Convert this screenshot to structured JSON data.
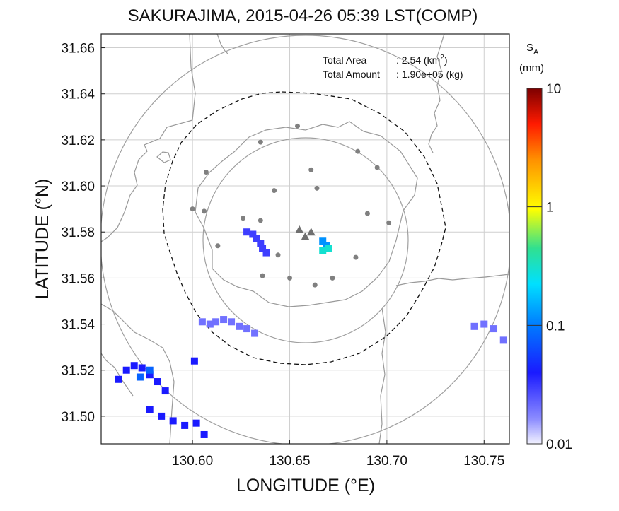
{
  "chart_data": {
    "type": "heatmap",
    "title": "SAKURAJIMA, 2015-04-26 05:39 LST(COMP)",
    "xlabel": "LONGITUDE (°E)",
    "ylabel": "LATITUDE (°N)",
    "xlim": [
      130.553,
      130.763
    ],
    "ylim": [
      31.488,
      31.666
    ],
    "x_ticks": [
      "130.60",
      "130.65",
      "130.70",
      "130.75"
    ],
    "x_tick_values": [
      130.6,
      130.65,
      130.7,
      130.75
    ],
    "y_ticks": [
      "31.50",
      "31.52",
      "31.54",
      "31.56",
      "31.58",
      "31.60",
      "31.62",
      "31.64",
      "31.66"
    ],
    "y_tick_values": [
      31.5,
      31.52,
      31.54,
      31.56,
      31.58,
      31.6,
      31.62,
      31.64,
      31.66
    ],
    "grid": true,
    "annotation": {
      "area_label": "Total Area",
      "area_value": ": 2.54 (km",
      "area_unit_close": ")",
      "area_sup": "2",
      "amount_label": "Total Amount",
      "amount_value": ": 1.90e+05 (kg)"
    },
    "colorbar": {
      "title": "S",
      "title_sub": "A",
      "unit": "(mm)",
      "scale": "log",
      "range": [
        0.01,
        10
      ],
      "ticks": [
        "10",
        "1",
        "0.1",
        "0.01"
      ],
      "tick_values": [
        10,
        1,
        0.1,
        0.01
      ],
      "colors": [
        "#f2f2ff",
        "#1a1aff",
        "#00e8ff",
        "#ffff00",
        "#ff8000",
        "#ff0000",
        "#800000"
      ]
    },
    "centre": {
      "lon": 130.657,
      "lat": 31.578
    },
    "range_rings_km": [
      10,
      15
    ],
    "stations": [
      [
        130.654,
        31.626
      ],
      [
        130.635,
        31.619
      ],
      [
        130.685,
        31.615
      ],
      [
        130.607,
        31.606
      ],
      [
        130.661,
        31.607
      ],
      [
        130.695,
        31.608
      ],
      [
        130.642,
        31.598
      ],
      [
        130.664,
        31.599
      ],
      [
        130.6,
        31.59
      ],
      [
        130.606,
        31.589
      ],
      [
        130.69,
        31.588
      ],
      [
        130.626,
        31.586
      ],
      [
        130.635,
        31.585
      ],
      [
        130.701,
        31.584
      ],
      [
        130.613,
        31.574
      ],
      [
        130.644,
        31.57
      ],
      [
        130.684,
        31.569
      ],
      [
        130.636,
        31.561
      ],
      [
        130.65,
        31.56
      ],
      [
        130.672,
        31.56
      ],
      [
        130.663,
        31.557
      ]
    ],
    "craters": [
      [
        130.655,
        31.581
      ],
      [
        130.658,
        31.578
      ],
      [
        130.661,
        31.58
      ]
    ],
    "echo_regions": [
      {
        "value": 0.03,
        "cells": [
          [
            130.628,
            31.58
          ],
          [
            130.631,
            31.579
          ],
          [
            130.633,
            31.577
          ],
          [
            130.635,
            31.575
          ],
          [
            130.636,
            31.573
          ],
          [
            130.638,
            31.571
          ]
        ]
      },
      {
        "value": 0.12,
        "cells": [
          [
            130.667,
            31.576
          ],
          [
            130.669,
            31.574
          ]
        ]
      },
      {
        "value": 0.3,
        "cells": [
          [
            130.667,
            31.572
          ],
          [
            130.67,
            31.573
          ]
        ]
      },
      {
        "value": 0.02,
        "cells": [
          [
            130.605,
            31.541
          ],
          [
            130.609,
            31.54
          ],
          [
            130.612,
            31.541
          ],
          [
            130.616,
            31.542
          ],
          [
            130.62,
            31.541
          ],
          [
            130.624,
            31.539
          ],
          [
            130.628,
            31.538
          ],
          [
            130.632,
            31.536
          ],
          [
            130.745,
            31.539
          ],
          [
            130.75,
            31.54
          ],
          [
            130.755,
            31.538
          ],
          [
            130.76,
            31.533
          ]
        ]
      },
      {
        "value": 0.04,
        "cells": [
          [
            130.562,
            31.516
          ],
          [
            130.566,
            31.52
          ],
          [
            130.57,
            31.522
          ],
          [
            130.574,
            31.521
          ],
          [
            130.578,
            31.518
          ],
          [
            130.582,
            31.515
          ],
          [
            130.586,
            31.511
          ],
          [
            130.601,
            31.524
          ],
          [
            130.578,
            31.503
          ],
          [
            130.584,
            31.5
          ],
          [
            130.59,
            31.498
          ],
          [
            130.596,
            31.496
          ],
          [
            130.602,
            31.497
          ],
          [
            130.606,
            31.492
          ]
        ]
      },
      {
        "value": 0.08,
        "cells": [
          [
            130.573,
            31.517
          ],
          [
            130.578,
            31.52
          ]
        ]
      }
    ]
  }
}
